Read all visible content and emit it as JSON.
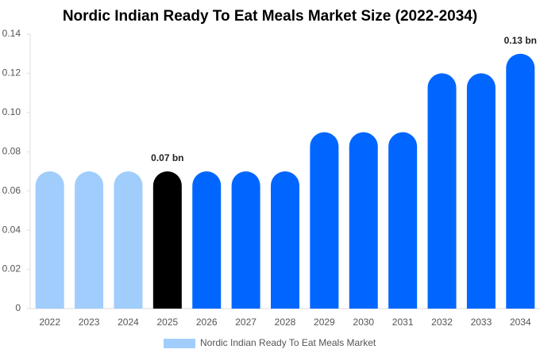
{
  "chart_data": {
    "type": "bar",
    "title": "Nordic Indian Ready To Eat Meals Market Size (2022-2034)",
    "categories": [
      "2022",
      "2023",
      "2024",
      "2025",
      "2026",
      "2027",
      "2028",
      "2029",
      "2030",
      "2031",
      "2032",
      "2033",
      "2034"
    ],
    "series": [
      {
        "name": "Nordic Indian Ready To Eat Meals Market",
        "color": "#a0cdfc",
        "colors": [
          "#a0cdfc",
          "#a0cdfc",
          "#a0cdfc",
          "#000000",
          "#0066ff",
          "#0066ff",
          "#0066ff",
          "#0066ff",
          "#0066ff",
          "#0066ff",
          "#0066ff",
          "#0066ff",
          "#0066ff"
        ],
        "values": [
          0.07,
          0.07,
          0.07,
          0.07,
          0.07,
          0.07,
          0.07,
          0.09,
          0.09,
          0.09,
          0.12,
          0.12,
          0.13
        ],
        "value_labels": [
          null,
          null,
          null,
          "0.07 bn",
          null,
          null,
          null,
          null,
          null,
          null,
          null,
          null,
          "0.13 bn"
        ]
      }
    ],
    "ylim": [
      0,
      0.14
    ],
    "yticks": [
      0,
      0.02,
      0.04,
      0.06,
      0.08,
      {
        "value": 0.1,
        "label": "0.10"
      },
      0.12,
      0.14
    ],
    "grid": false
  }
}
